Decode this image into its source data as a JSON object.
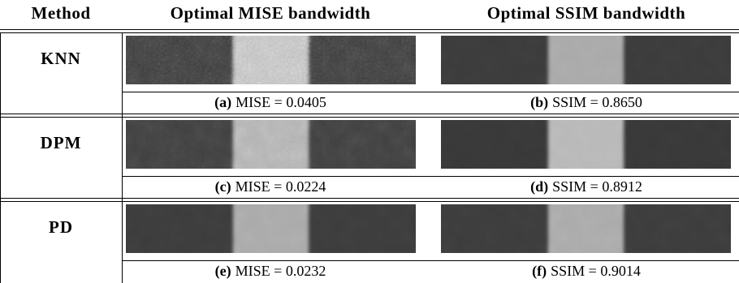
{
  "table": {
    "header": [
      "Method",
      "Optimal MISE bandwidth",
      "Optimal SSIM bandwidth"
    ],
    "rows": [
      {
        "method": "KNN",
        "cells": [
          {
            "tag": "(a)",
            "text": "MISE = 0.0405"
          },
          {
            "tag": "(b)",
            "text": "SSIM = 0.8650"
          }
        ]
      },
      {
        "method": "DPM",
        "cells": [
          {
            "tag": "(c)",
            "text": "MISE = 0.0224"
          },
          {
            "tag": "(d)",
            "text": "SSIM = 0.8912"
          }
        ]
      },
      {
        "method": "PD",
        "cells": [
          {
            "tag": "(e)",
            "text": "MISE = 0.0232"
          },
          {
            "tag": "(f)",
            "text": "SSIM = 0.9014"
          }
        ]
      }
    ]
  }
}
